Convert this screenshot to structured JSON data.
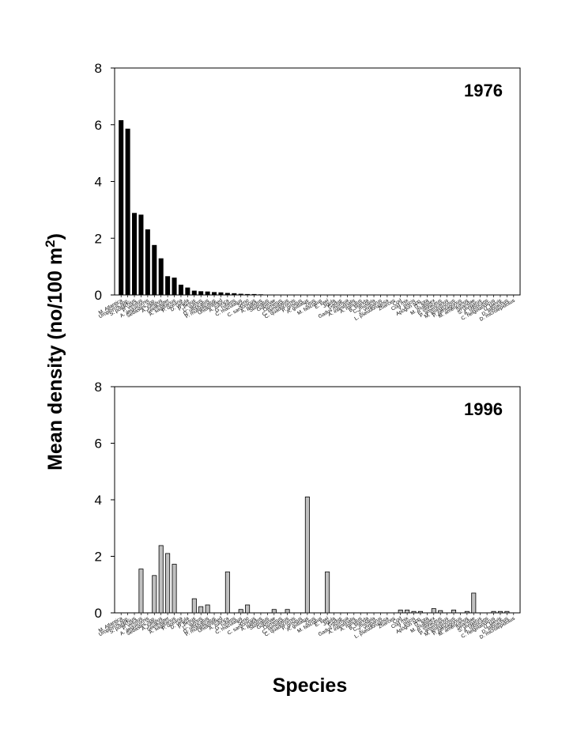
{
  "figure": {
    "ylabel": "Mean density (no/100 m",
    "ylabel_sup": "2",
    "ylabel_close": ")",
    "xlabel": "Species"
  },
  "chart_data": [
    {
      "type": "bar",
      "panel_label": "1976",
      "ylim": [
        0,
        8
      ],
      "yticks": [
        0,
        2,
        4,
        6,
        8
      ],
      "bar_color": "#000000",
      "categories": [
        "M. Atlantica",
        "Urophycis spp.",
        "S. pollachius",
        "P. vetulus",
        "A. aequicornis",
        "Sebastes spp.",
        "A. lumpus",
        "Seeleaster",
        "A. sagittarius",
        "P. oceana",
        "D. vetula",
        "P. flesus",
        "C. vulnus",
        "D. ulbricatus",
        "P. multiplicatus",
        "Unidentified",
        "A. rubrica",
        "G. rubens",
        "C. maculatus",
        "Seno",
        "C. sardonicus",
        "A. pallidus",
        "Stomatus",
        "Gobiinae",
        "Osmerus",
        "C. lamellatus",
        "C. quadricornis",
        "P. griseus",
        "A. guttatus",
        "Zeus",
        "M. fasciatus",
        "E. lowi",
        "Jigula",
        "Gadus",
        "Gadus morhua",
        "A. intestinalis",
        "A. minutus",
        "B. blanda",
        "C. mustela",
        "Z. viviparus",
        "L. pseudorugosa",
        "Zoarces",
        "Cod",
        "Cod mix",
        "Y. piscis",
        "Apogon spp.",
        "G. lota",
        "M. multiplex",
        "P. olivaceus",
        "P. americanus",
        "M. lentiginosus",
        "P. pentagonus",
        "M. americanus",
        "Sparidae",
        "S. viviparus",
        "A. rubricans",
        "C. helgolandicus",
        "U. laevis",
        "D. lilibrachus",
        "D. microlepidotus"
      ],
      "values": [
        6.15,
        5.85,
        2.88,
        2.82,
        2.3,
        1.75,
        1.28,
        0.65,
        0.6,
        0.35,
        0.25,
        0.14,
        0.12,
        0.11,
        0.09,
        0.08,
        0.06,
        0.05,
        0.03,
        0.02,
        0.02,
        0.01,
        0,
        0,
        0,
        0,
        0,
        0,
        0,
        0,
        0,
        0,
        0,
        0,
        0,
        0,
        0,
        0,
        0,
        0,
        0,
        0,
        0,
        0,
        0,
        0,
        0,
        0,
        0,
        0,
        0,
        0,
        0,
        0,
        0,
        0,
        0,
        0,
        0,
        0
      ]
    },
    {
      "type": "bar",
      "panel_label": "1996",
      "ylim": [
        0,
        8
      ],
      "yticks": [
        0,
        2,
        4,
        6,
        8
      ],
      "bar_color": "#c0c0c0",
      "categories": [
        "M. Atlantica",
        "Urophycis spp.",
        "S. pollachius",
        "P. vetulus",
        "A. aequicornis",
        "Sebastes spp.",
        "A. lumpus",
        "Seeleaster",
        "A. sagittarius",
        "P. oceana",
        "D. vetula",
        "P. flesus",
        "C. vulnus",
        "D. ulbricatus",
        "P. multiplicatus",
        "Unidentified",
        "A. rubrica",
        "G. rubens",
        "C. maculatus",
        "Seno",
        "C. sardonicus",
        "A. pallidus",
        "Stomatus",
        "Gobiinae",
        "Osmerus",
        "C. lamellatus",
        "C. quadricornis",
        "P. griseus",
        "A. guttatus",
        "Zeus",
        "M. fasciatus",
        "E. lowi",
        "Jigula",
        "Gadus",
        "Gadus morhua",
        "A. intestinalis",
        "A. minutus",
        "B. blanda",
        "C. mustela",
        "Z. viviparus",
        "L. pseudorugosa",
        "Zoarces",
        "Cod",
        "Cod mix",
        "Y. piscis",
        "Apogon spp.",
        "G. lota",
        "M. multiplex",
        "P. olivaceus",
        "P. americanus",
        "M. lentiginosus",
        "P. pentagonus",
        "M. americanus",
        "Sparidae",
        "S. viviparus",
        "A. rubricans",
        "C. helgolandicus",
        "U. laevis",
        "D. lilibrachus",
        "D. microlepidotus"
      ],
      "values": [
        0,
        0,
        0,
        1.55,
        0,
        1.32,
        2.38,
        2.1,
        1.72,
        0,
        0,
        0.5,
        0.22,
        0.28,
        0,
        0,
        1.45,
        0,
        0.12,
        0.28,
        0,
        0,
        0,
        0.12,
        0,
        0.12,
        0,
        0,
        4.1,
        0,
        0,
        1.45,
        0,
        0,
        0,
        0,
        0,
        0,
        0,
        0,
        0,
        0,
        0.1,
        0.1,
        0.05,
        0.05,
        0,
        0.15,
        0.08,
        0,
        0.1,
        0,
        0.05,
        0.7,
        0,
        0,
        0.05,
        0.05,
        0.05,
        0
      ]
    }
  ]
}
